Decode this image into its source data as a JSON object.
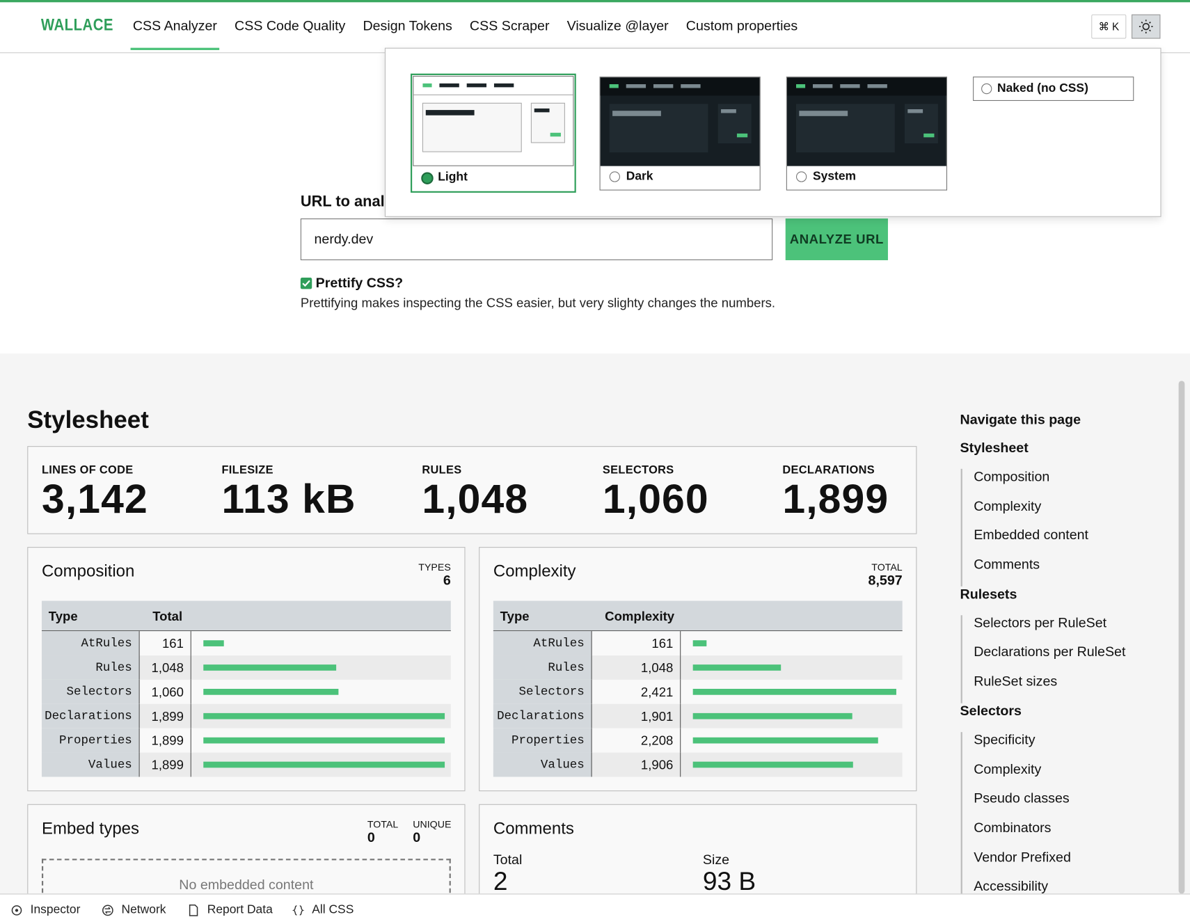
{
  "header": {
    "logo": "WALLACE",
    "nav": [
      "CSS Analyzer",
      "CSS Code Quality",
      "Design Tokens",
      "CSS Scraper",
      "Visualize @layer",
      "Custom properties"
    ],
    "shortcut": "⌘ K"
  },
  "theme_menu": {
    "options": [
      "Light",
      "Dark",
      "System",
      "Naked (no CSS)"
    ]
  },
  "form": {
    "label": "URL to analyze",
    "input": "nerdy.dev",
    "button": "ANALYZE URL",
    "checkbox": "Prettify CSS?",
    "hint": "Prettifying makes inspecting the CSS easier, but very slighty changes the numbers."
  },
  "stylesheet": {
    "title": "Stylesheet",
    "stats": [
      {
        "label": "LINES OF CODE",
        "value": "3,142"
      },
      {
        "label": "FILESIZE",
        "value": "113 kB"
      },
      {
        "label": "RULES",
        "value": "1,048"
      },
      {
        "label": "SELECTORS",
        "value": "1,060"
      },
      {
        "label": "DECLARATIONS",
        "value": "1,899"
      }
    ]
  },
  "composition": {
    "title": "Composition",
    "meta_label": "TYPES",
    "meta_value": "6",
    "columns": [
      "Type",
      "Total"
    ],
    "rows": [
      {
        "type": "AtRules",
        "total": {
          "value": 161,
          "label": "161"
        }
      },
      {
        "type": "Rules",
        "total": {
          "value": 1048,
          "label": "1,048"
        }
      },
      {
        "type": "Selectors",
        "total": {
          "value": 1060,
          "label": "1,060"
        }
      },
      {
        "type": "Declarations",
        "total": {
          "value": 1899,
          "label": "1,899"
        }
      },
      {
        "type": "Properties",
        "total": {
          "value": 1899,
          "label": "1,899"
        }
      },
      {
        "type": "Values",
        "total": {
          "value": 1899,
          "label": "1,899"
        }
      }
    ]
  },
  "complexity": {
    "title": "Complexity",
    "meta_label": "TOTAL",
    "meta_value": "8,597",
    "columns": [
      "Type",
      "Complexity"
    ],
    "rows": [
      {
        "type": "AtRules",
        "total": {
          "value": 161,
          "label": "161"
        }
      },
      {
        "type": "Rules",
        "total": {
          "value": 1048,
          "label": "1,048"
        }
      },
      {
        "type": "Selectors",
        "total": {
          "value": 2421,
          "label": "2,421"
        }
      },
      {
        "type": "Declarations",
        "total": {
          "value": 1901,
          "label": "1,901"
        }
      },
      {
        "type": "Properties",
        "total": {
          "value": 2208,
          "label": "2,208"
        }
      },
      {
        "type": "Values",
        "total": {
          "value": 1906,
          "label": "1,906"
        }
      }
    ]
  },
  "embed": {
    "title": "Embed types",
    "meta": [
      {
        "label": "TOTAL",
        "value": "0"
      },
      {
        "label": "UNIQUE",
        "value": "0"
      }
    ],
    "empty": "No embedded content"
  },
  "comments": {
    "title": "Comments",
    "stats": [
      {
        "label": "Total",
        "value": "2"
      },
      {
        "label": "Size",
        "value": "93 B"
      }
    ]
  },
  "sidenav": {
    "title": "Navigate this page",
    "groups": [
      {
        "title": "Stylesheet",
        "items": [
          "Composition",
          "Complexity",
          "Embedded content",
          "Comments"
        ]
      },
      {
        "title": "Rulesets",
        "items": [
          "Selectors per RuleSet",
          "Declarations per RuleSet",
          "RuleSet sizes"
        ]
      },
      {
        "title": "Selectors",
        "items": [
          "Specificity",
          "Complexity",
          "Pseudo classes",
          "Combinators",
          "Vendor Prefixed",
          "Accessibility"
        ]
      }
    ]
  },
  "devtools": {
    "tabs": [
      "Inspector",
      "Network",
      "Report Data",
      "All CSS"
    ]
  }
}
